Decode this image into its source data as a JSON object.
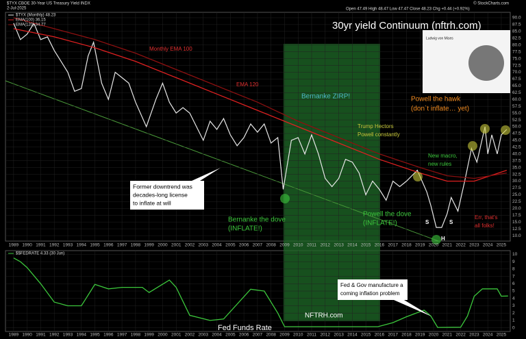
{
  "header": {
    "symbol": "$TYX CBOE 30-Year US Treasury Yield INDX",
    "date": "2-Jul-2025",
    "ohlc": "Open 47.49 High 48.47 Low 47.47 Close 48.23 Chg +0.44 (+0.92%)",
    "source": "© StockCharts.com",
    "portrait": "Ludwig von Mises"
  },
  "chart_data": [
    {
      "type": "line",
      "title": "30yr yield Continuum (nftrh.com)",
      "xlim": [
        1988.4,
        2025.66
      ],
      "ylim": [
        8,
        92
      ],
      "xticks": [
        1989,
        1990,
        1991,
        1992,
        1993,
        1994,
        1995,
        1996,
        1997,
        1998,
        1999,
        2000,
        2001,
        2002,
        2003,
        2004,
        2005,
        2006,
        2007,
        2008,
        2009,
        2010,
        2011,
        2012,
        2013,
        2014,
        2015,
        2016,
        2017,
        2018,
        2019,
        2020,
        2021,
        2022,
        2023,
        2024,
        2025
      ],
      "yticks": [
        {
          "value": 10,
          "label": "10.0"
        },
        {
          "value": 12.5,
          "label": "12.5"
        },
        {
          "value": 15,
          "label": "15.0"
        },
        {
          "value": 17.5,
          "label": "17.5"
        },
        {
          "value": 20,
          "label": "20.0"
        },
        {
          "value": 22.5,
          "label": "22.5"
        },
        {
          "value": 25,
          "label": "25.0"
        },
        {
          "value": 27.5,
          "label": "27.5"
        },
        {
          "value": 30,
          "label": "30.0"
        },
        {
          "value": 32.5,
          "label": "32.5"
        },
        {
          "value": 35,
          "label": "35.0"
        },
        {
          "value": 37.5,
          "label": "37.5"
        },
        {
          "value": 40,
          "label": "40.0"
        },
        {
          "value": 42.5,
          "label": "42.5"
        },
        {
          "value": 45,
          "label": "45.0"
        },
        {
          "value": 47.5,
          "label": "47.5"
        },
        {
          "value": 50,
          "label": "50.0"
        },
        {
          "value": 52.5,
          "label": "52.5"
        },
        {
          "value": 55,
          "label": "55.0"
        },
        {
          "value": 57.5,
          "label": "57.5"
        },
        {
          "value": 60,
          "label": "60.0"
        },
        {
          "value": 62.5,
          "label": "62.5"
        },
        {
          "value": 65,
          "label": "65.0"
        },
        {
          "value": 67.5,
          "label": "67.5"
        },
        {
          "value": 70,
          "label": "70.0"
        },
        {
          "value": 72.5,
          "label": "72.5"
        },
        {
          "value": 75,
          "label": "75.0"
        },
        {
          "value": 77.5,
          "label": "77.5"
        },
        {
          "value": 80,
          "label": "80.0"
        },
        {
          "value": 82.5,
          "label": "82.5"
        },
        {
          "value": 85,
          "label": "85.0"
        },
        {
          "value": 87.5,
          "label": "87.5"
        },
        {
          "value": 90,
          "label": "90.0"
        }
      ],
      "grid": true,
      "series": [
        {
          "name": "$TYX (Monthly) 48.23",
          "color": "#e8e8e8",
          "x": [
            1989,
            1989.5,
            1990,
            1990.5,
            1991,
            1991.5,
            1992,
            1992.5,
            1993,
            1993.5,
            1994,
            1994.5,
            1994.9,
            1995.5,
            1996,
            1996.5,
            1997,
            1997.5,
            1998,
            1998.8,
            1999.5,
            2000,
            2000.5,
            2001,
            2001.5,
            2002,
            2002.5,
            2003,
            2003.5,
            2004,
            2004.5,
            2005,
            2005.5,
            2006,
            2006.5,
            2007,
            2007.5,
            2008,
            2008.5,
            2008.9,
            2009.5,
            2010,
            2010.5,
            2011,
            2011.5,
            2012,
            2012.5,
            2013,
            2013.5,
            2014,
            2014.5,
            2015,
            2015.5,
            2016,
            2016.5,
            2017,
            2017.5,
            2018,
            2018.8,
            2019.5,
            2019.8,
            2020.2,
            2020.6,
            2021,
            2021.3,
            2021.8,
            2022.3,
            2022.8,
            2023.2,
            2023.8,
            2024,
            2024.3,
            2024.7,
            2025,
            2025.4
          ],
          "values": [
            88,
            82,
            84,
            88,
            82,
            83,
            78,
            74,
            70,
            63,
            64,
            76,
            81,
            66,
            60,
            70,
            68,
            66,
            59,
            50,
            60,
            66,
            59,
            55,
            57,
            55,
            50,
            45,
            52,
            49,
            53,
            47,
            43,
            46,
            51,
            48,
            51,
            44,
            46,
            27,
            45,
            46,
            40,
            47,
            40,
            31,
            28,
            31,
            38,
            37,
            33,
            25,
            30,
            27,
            23,
            30,
            28,
            30,
            34,
            26,
            21,
            13,
            13,
            18,
            24,
            19,
            30,
            42,
            37,
            50,
            40,
            47,
            40,
            47,
            49
          ]
        },
        {
          "name": "EMA(100) 36.15",
          "color": "#e02020",
          "x": [
            1989,
            1992,
            1995,
            1998,
            2001,
            2004,
            2007,
            2010,
            2013,
            2016,
            2019,
            2021,
            2023,
            2025.4
          ],
          "values": [
            86,
            83,
            79,
            74,
            68,
            62,
            56,
            50,
            44,
            38,
            33,
            30,
            30,
            34
          ]
        },
        {
          "name": "EMA(120) 34.77",
          "color": "#8b1010",
          "x": [
            1989,
            1992,
            1995,
            1998,
            2001,
            2004,
            2007,
            2010,
            2013,
            2016,
            2019,
            2021,
            2023,
            2025.4
          ],
          "values": [
            90,
            86,
            82,
            77,
            71,
            65,
            59,
            52,
            46,
            40,
            35,
            32,
            31,
            33
          ]
        }
      ],
      "annotations": [
        "Monthly EMA 100",
        "EMA 120",
        "Bernanke ZIRP!",
        "Trump Hectors",
        "Powell constantly",
        "Powell the hawk",
        "(don`t inflate… yet)",
        "New macro,",
        "new rules",
        "Former downtrend was",
        "decades-long license",
        "to inflate at will",
        "Bernanke the dove",
        "(INFLATE!)",
        "Powell the dove",
        "(INFLATE!)",
        "Err, that's",
        "all folks!",
        "S",
        "S",
        "H",
        "NFTRH.com"
      ]
    },
    {
      "type": "line",
      "title": "Fed Funds Rate",
      "xlim": [
        1988.4,
        2025.66
      ],
      "ylim": [
        -0.5,
        10.5
      ],
      "xticks": [
        1989,
        1990,
        1991,
        1992,
        1993,
        1994,
        1995,
        1996,
        1997,
        1998,
        1999,
        2000,
        2001,
        2002,
        2003,
        2004,
        2005,
        2006,
        2007,
        2008,
        2009,
        2010,
        2011,
        2012,
        2013,
        2014,
        2015,
        2016,
        2017,
        2018,
        2019,
        2020,
        2021,
        2022,
        2023,
        2024,
        2025
      ],
      "yticks": [
        0,
        1,
        2,
        3,
        4,
        5,
        6,
        7,
        8,
        9,
        10
      ],
      "grid": true,
      "series": [
        {
          "name": "$$FEDRATE 4.33 (30 Jun)",
          "color": "#3cc83c",
          "x": [
            1989,
            1989.5,
            1990,
            1991,
            1992,
            1993,
            1994,
            1995,
            1996,
            1997,
            1998.5,
            1999,
            2000.5,
            2001,
            2002,
            2003.5,
            2004.5,
            2006.5,
            2007.5,
            2008.5,
            2009,
            2015.9,
            2017,
            2018,
            2019.3,
            2019.8,
            2020.3,
            2022,
            2022.5,
            2023,
            2023.6,
            2024.7,
            2025,
            2025.5
          ],
          "values": [
            9.5,
            9,
            8.2,
            6,
            3.5,
            3,
            3,
            5.9,
            5.3,
            5.5,
            5.5,
            4.8,
            6.5,
            5.5,
            1.7,
            1,
            1.2,
            5.25,
            5,
            2,
            0.15,
            0.15,
            0.7,
            1.5,
            2.4,
            1.6,
            0.05,
            0.08,
            1.6,
            4.3,
            5.3,
            5.3,
            4.3,
            4.33
          ]
        }
      ],
      "annotations": [
        "Fed & Gov  manufacture a",
        "coming inflation problem"
      ]
    }
  ]
}
